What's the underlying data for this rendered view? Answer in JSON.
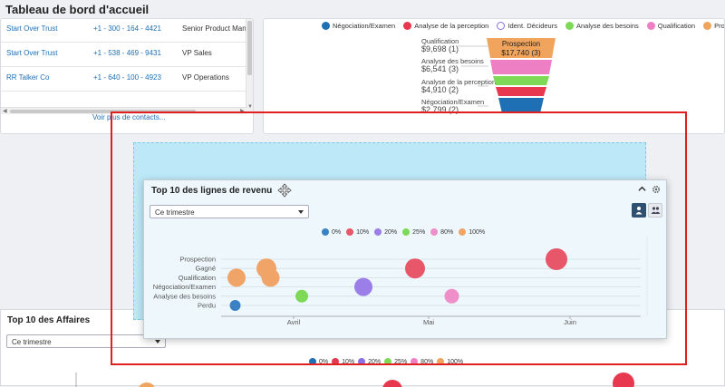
{
  "page": {
    "title": "Tableau de bord d'accueil"
  },
  "contacts": {
    "rows": [
      {
        "name": "Start Over Trust",
        "phone": "+1 - 300 - 164 - 4421",
        "title": "Senior Product Man"
      },
      {
        "name": "Start Over Trust",
        "phone": "+1 - 538 - 469 - 9431",
        "title": "VP Sales"
      },
      {
        "name": "RR Talker Co",
        "phone": "+1 - 640 - 100 - 4923",
        "title": "VP Operations"
      }
    ],
    "more_link": "Voir plus de contacts..."
  },
  "funnel": {
    "legend": [
      {
        "label": "Négociation/Examen",
        "color": "#1f6fb5",
        "hollow": false
      },
      {
        "label": "Analyse de la perception",
        "color": "#e8384f",
        "hollow": false
      },
      {
        "label": "Ident. Décideurs",
        "color": "#8c6ee6",
        "hollow": true
      },
      {
        "label": "Analyse des besoins",
        "color": "#7ed957",
        "hollow": false
      },
      {
        "label": "Qualification",
        "color": "#ee7fc4",
        "hollow": false
      },
      {
        "label": "Prospection",
        "color": "#f0a45e",
        "hollow": false
      }
    ],
    "labels": [
      {
        "name": "Qualification",
        "value": "$9,698 (1)"
      },
      {
        "name": "Analyse des besoins",
        "value": "$6,541 (3)"
      },
      {
        "name": "Analyse de la perception",
        "value": "$4,910 (2)"
      },
      {
        "name": "Négociation/Examen",
        "value": "$2,799 (2)"
      }
    ],
    "top_segment": {
      "name": "Prospection",
      "value": "$17,740 (3)"
    }
  },
  "dialog": {
    "title": "Top 10 des lignes de revenu",
    "period_select": "Ce trimestre",
    "legend": [
      {
        "label": "0%",
        "color": "#3b82c4"
      },
      {
        "label": "10%",
        "color": "#e8566a"
      },
      {
        "label": "20%",
        "color": "#9b7ee8"
      },
      {
        "label": "25%",
        "color": "#7ed957"
      },
      {
        "label": "80%",
        "color": "#ee8fc9"
      },
      {
        "label": "100%",
        "color": "#f0a468"
      }
    ]
  },
  "deals": {
    "title": "Top 10 des Affaires",
    "period_select": "Ce trimestre",
    "legend": [
      {
        "label": "0%",
        "color": "#1f6fb5"
      },
      {
        "label": "10%",
        "color": "#e8384f"
      },
      {
        "label": "20%",
        "color": "#8c6ee6"
      },
      {
        "label": "25%",
        "color": "#7ed957"
      },
      {
        "label": "80%",
        "color": "#ee7fc4"
      },
      {
        "label": "100%",
        "color": "#f0a45e"
      }
    ]
  },
  "chart_data": {
    "type": "scatter",
    "categories": [
      "Prospection",
      "Gagné",
      "Qualification",
      "Négociation/Examen",
      "Analyse des besoins",
      "Perdu"
    ],
    "x_ticks": [
      "Avril",
      "Mai",
      "Juin"
    ],
    "points": [
      {
        "x": "Juin",
        "x_offset": -0.1,
        "y": "Prospection",
        "probability": "10%",
        "size": 12
      },
      {
        "x": "Mai",
        "x_offset": -0.1,
        "y": "Gagné",
        "probability": "10%",
        "size": 11
      },
      {
        "x": "Avril",
        "x_offset": -0.2,
        "y": "Gagné",
        "probability": "100%",
        "size": 11
      },
      {
        "x": "Avril",
        "x_offset": -0.42,
        "y": "Qualification",
        "probability": "100%",
        "size": 10
      },
      {
        "x": "Avril",
        "x_offset": -0.17,
        "y": "Qualification",
        "probability": "100%",
        "size": 10
      },
      {
        "x": "Mai",
        "x_offset": -0.48,
        "y": "Négociation/Examen",
        "probability": "20%",
        "size": 10
      },
      {
        "x": "Mai",
        "x_offset": 0.17,
        "y": "Analyse des besoins",
        "probability": "80%",
        "size": 8
      },
      {
        "x": "Avril",
        "x_offset": 0.06,
        "y": "Analyse des besoins",
        "probability": "25%",
        "size": 7
      },
      {
        "x": "Avril",
        "x_offset": -0.43,
        "y": "Perdu",
        "probability": "0%",
        "size": 6
      }
    ]
  }
}
